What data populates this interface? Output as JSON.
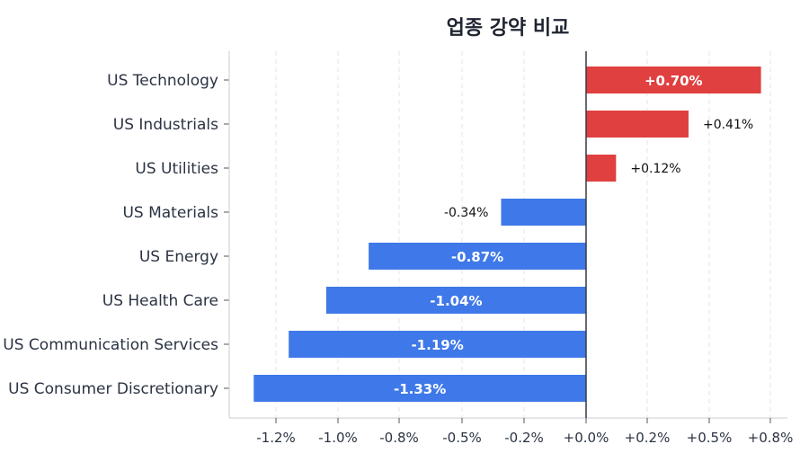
{
  "chart_data": {
    "type": "bar",
    "orientation": "horizontal",
    "title": "업종 강약 비교",
    "xlabel": "",
    "ylabel": "",
    "categories": [
      "US Technology",
      "US Industrials",
      "US Utilities",
      "US Materials",
      "US Energy",
      "US Health Care",
      "US Communication Services",
      "US Consumer Discretionary"
    ],
    "values": [
      0.7,
      0.41,
      0.12,
      -0.34,
      -0.87,
      -1.04,
      -1.19,
      -1.33
    ],
    "value_labels": [
      "+0.70%",
      "+0.41%",
      "+0.12%",
      "-0.34%",
      "-0.87%",
      "-1.04%",
      "-1.19%",
      "-1.33%"
    ],
    "xlim": [
      -1.33,
      0.8
    ],
    "xticks": [
      -1.2,
      -1.0,
      -0.8,
      -0.5,
      -0.2,
      0.0,
      0.2,
      0.5,
      0.8
    ],
    "xtick_labels": [
      "-1.2%",
      "-1.0%",
      "-0.8%",
      "-0.5%",
      "-0.2%",
      "+0.0%",
      "+0.2%",
      "+0.5%",
      "+0.8%"
    ],
    "grid": "vertical dashed",
    "legend": "none",
    "colors": {
      "positive": "#e04040",
      "negative": "#3f78e8"
    }
  }
}
